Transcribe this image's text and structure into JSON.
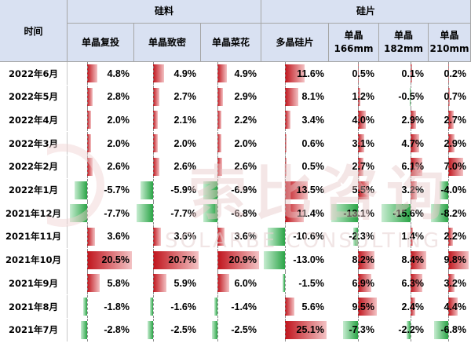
{
  "header": {
    "time": "时间",
    "groups": [
      {
        "label": "硅料",
        "key": "silicon"
      },
      {
        "label": "硅片",
        "key": "wafer"
      }
    ],
    "columns": [
      {
        "line1": "单晶复投",
        "line2": ""
      },
      {
        "line1": "单晶致密",
        "line2": ""
      },
      {
        "line1": "单晶菜花",
        "line2": ""
      },
      {
        "line1": "多晶硅片",
        "line2": ""
      },
      {
        "line1": "单晶",
        "line2": "166mm"
      },
      {
        "line1": "单晶",
        "line2": "182mm"
      },
      {
        "line1": "单晶",
        "line2": "210mm"
      }
    ]
  },
  "rows": [
    {
      "period": "2022年6月",
      "values": [
        "4.8%",
        "4.9%",
        "4.9%",
        "11.6%",
        "0.5%",
        "0.1%",
        "0.2%"
      ]
    },
    {
      "period": "2022年5月",
      "values": [
        "2.8%",
        "2.7%",
        "2.9%",
        "8.1%",
        "1.2%",
        "-0.5%",
        "0.7%"
      ]
    },
    {
      "period": "2022年4月",
      "values": [
        "2.0%",
        "2.1%",
        "2.2%",
        "3.4%",
        "4.0%",
        "2.9%",
        "2.7%"
      ]
    },
    {
      "period": "2022年3月",
      "values": [
        "2.0%",
        "2.0%",
        "2.0%",
        "0.6%",
        "3.1%",
        "4.7%",
        "2.9%"
      ]
    },
    {
      "period": "2022年2月",
      "values": [
        "2.6%",
        "2.6%",
        "2.6%",
        "0.5%",
        "2.7%",
        "6.1%",
        "7.0%"
      ]
    },
    {
      "period": "2022年1月",
      "values": [
        "-5.7%",
        "-5.9%",
        "-6.9%",
        "13.5%",
        "5.5%",
        "3.2%",
        "-4.0%"
      ]
    },
    {
      "period": "2021年12月",
      "values": [
        "-7.7%",
        "-7.7%",
        "-6.8%",
        "11.4%",
        "-13.1%",
        "-15.6%",
        "-8.2%"
      ]
    },
    {
      "period": "2021年11月",
      "values": [
        "3.6%",
        "3.6%",
        "3.6%",
        "-10.6%",
        "-2.3%",
        "1.4%",
        "2.2%"
      ]
    },
    {
      "period": "2021年10月",
      "values": [
        "20.5%",
        "20.7%",
        "20.9%",
        "-13.0%",
        "8.2%",
        "8.4%",
        "9.8%"
      ]
    },
    {
      "period": "2021年9月",
      "values": [
        "5.8%",
        "5.9%",
        "6.0%",
        "-1.5%",
        "6.9%",
        "6.3%",
        "3.2%"
      ]
    },
    {
      "period": "2021年8月",
      "values": [
        "-1.8%",
        "-1.6%",
        "-1.4%",
        "5.6%",
        "9.5%",
        "2.4%",
        "4.4%"
      ]
    },
    {
      "period": "2021年7月",
      "values": [
        "-2.8%",
        "-2.5%",
        "-2.5%",
        "25.1%",
        "-7.3%",
        "-2.2%",
        "-6.8%"
      ]
    }
  ],
  "watermark": {
    "cn": "索比咨询",
    "en": "SOLARBE CONSULTING"
  },
  "colors": {
    "positive": "#c0141c",
    "negative": "#2aa446",
    "header_bg": "#d9e1f2"
  }
}
